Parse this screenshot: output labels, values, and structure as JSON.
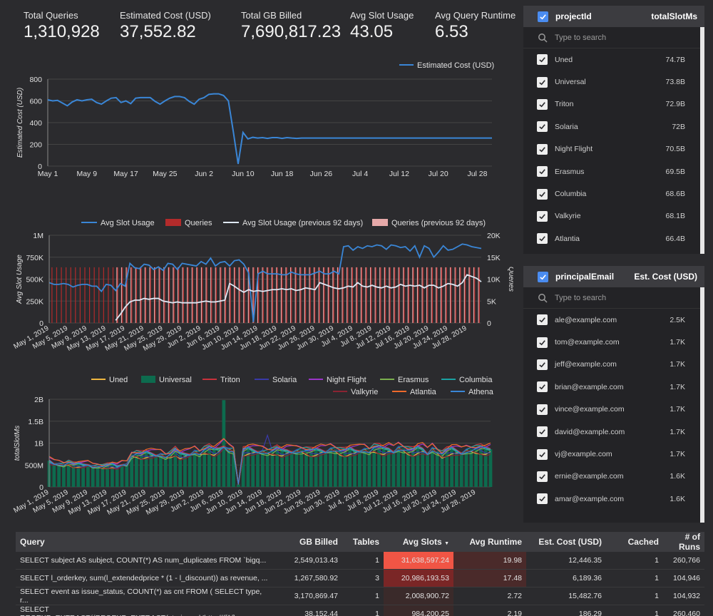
{
  "scorecards": [
    {
      "label": "Total Queries",
      "value": "1,310,928"
    },
    {
      "label": "Estimated Cost (USD)",
      "value": "37,552.82"
    },
    {
      "label": "Total GB Billed",
      "value": "7,690,817.23"
    },
    {
      "label": "Avg Slot Usage",
      "value": "43.05"
    },
    {
      "label": "Avg Query Runtime",
      "value": "6.53"
    }
  ],
  "colors": {
    "blue": "#3a86d6",
    "queries": "#b32b2b",
    "queries_prev": "#e6a9a9",
    "prev_line": "#dfe8f5",
    "highlight1": "#f05545",
    "highlight2": "#7a2626"
  },
  "chart_data": [
    {
      "type": "line",
      "title": "",
      "legend": [
        "Estimated Cost (USD)"
      ],
      "legend_position": "top-right",
      "ylabel": "Estimated Cost (USD)",
      "ylim": [
        0,
        800
      ],
      "yticks": [
        "0",
        "200",
        "400",
        "600",
        "800"
      ],
      "xticks": [
        "May 1",
        "May 9",
        "May 17",
        "May 25",
        "Jun 2",
        "Jun 10",
        "Jun 18",
        "Jun 26",
        "Jul 4",
        "Jul 12",
        "Jul 20",
        "Jul 28"
      ],
      "x_start": "2019-05-01",
      "x_end": "2019-07-31",
      "series": [
        {
          "name": "Estimated Cost (USD)",
          "color": "#3a86d6",
          "values": [
            610,
            600,
            605,
            580,
            555,
            590,
            610,
            600,
            610,
            615,
            585,
            570,
            600,
            625,
            630,
            585,
            600,
            575,
            625,
            630,
            630,
            630,
            595,
            570,
            600,
            625,
            640,
            640,
            630,
            595,
            570,
            615,
            630,
            660,
            665,
            665,
            650,
            600,
            320,
            20,
            310,
            250,
            265,
            258,
            262,
            255,
            262,
            262,
            255,
            262,
            258,
            255,
            258,
            258,
            258,
            258,
            258,
            258,
            258,
            258,
            258,
            258,
            258,
            258,
            258,
            258,
            258,
            258,
            258,
            258,
            258,
            258,
            258,
            258,
            258,
            258,
            258,
            258,
            258,
            258,
            258,
            258,
            258,
            258,
            258,
            258,
            258,
            258,
            258,
            258,
            258,
            258
          ]
        }
      ]
    },
    {
      "type": "bar",
      "title": "",
      "legend": [
        "Avg Slot Usage",
        "Queries",
        "Avg Slot Usage (previous 92 days)",
        "Queries (previous 92 days)"
      ],
      "legend_position": "top",
      "ylabel": "Avg Slot Usage",
      "y2label": "Queries",
      "ylim": [
        0,
        1000000
      ],
      "y2lim": [
        0,
        20000
      ],
      "yticks": [
        "0",
        "250K",
        "500K",
        "750K",
        "1M"
      ],
      "y2ticks": [
        "0",
        "5K",
        "10K",
        "15K",
        "20K"
      ],
      "xticks": [
        "May 1, 2019",
        "May 5, 2019",
        "May 9, 2019",
        "May 13, 2019",
        "May 17, 2019",
        "May 21, 2019",
        "May 25, 2019",
        "May 29, 2019",
        "Jun 2, 2019",
        "Jun 6, 2019",
        "Jun 10, 2019",
        "Jun 14, 2019",
        "Jun 18, 2019",
        "Jun 22, 2019",
        "Jun 26, 2019",
        "Jun 30, 2019",
        "Jul 4, 2019",
        "Jul 8, 2019",
        "Jul 12, 2019",
        "Jul 16, 2019",
        "Jul 20, 2019",
        "Jul 24, 2019",
        "Jul 28, 2019"
      ],
      "queries": 12700,
      "queries_prev": 12700,
      "series": [
        {
          "name": "Avg Slot Usage",
          "color": "#3a86d6",
          "values": [
            460000,
            440000,
            440000,
            450000,
            440000,
            410000,
            430000,
            440000,
            440000,
            420000,
            420000,
            360000,
            440000,
            430000,
            370000,
            450000,
            420000,
            680000,
            630000,
            620000,
            670000,
            660000,
            610000,
            640000,
            600000,
            680000,
            670000,
            610000,
            680000,
            670000,
            660000,
            650000,
            700000,
            670000,
            740000,
            650000,
            690000,
            700000,
            650000,
            710000,
            720000,
            670000,
            570000,
            10000,
            560000,
            590000,
            560000,
            560000,
            560000,
            550000,
            550000,
            580000,
            560000,
            550000,
            550000,
            550000,
            570000,
            590000,
            560000,
            560000,
            590000,
            560000,
            870000,
            880000,
            830000,
            870000,
            850000,
            880000,
            870000,
            890000,
            880000,
            840000,
            890000,
            880000,
            860000,
            870000,
            820000,
            880000,
            750000,
            880000,
            850000,
            750000,
            810000,
            880000,
            830000,
            840000,
            870000,
            900000,
            890000,
            870000,
            860000,
            850000
          ]
        },
        {
          "name": "Avg Slot Usage (previous 92 days)",
          "color": "#dfe8f5",
          "values": [
            null,
            null,
            null,
            null,
            null,
            null,
            null,
            null,
            null,
            null,
            null,
            null,
            null,
            null,
            30000,
            100000,
            180000,
            240000,
            260000,
            260000,
            280000,
            270000,
            280000,
            280000,
            250000,
            240000,
            230000,
            240000,
            230000,
            230000,
            230000,
            230000,
            240000,
            250000,
            240000,
            240000,
            250000,
            260000,
            450000,
            420000,
            380000,
            350000,
            380000,
            360000,
            370000,
            360000,
            370000,
            380000,
            380000,
            390000,
            380000,
            390000,
            370000,
            380000,
            400000,
            390000,
            380000,
            460000,
            440000,
            420000,
            400000,
            390000,
            400000,
            420000,
            410000,
            460000,
            420000,
            410000,
            430000,
            410000,
            400000,
            420000,
            400000,
            410000,
            440000,
            420000,
            430000,
            420000,
            430000,
            400000,
            430000,
            430000,
            400000,
            420000,
            450000,
            440000,
            420000,
            460000,
            550000,
            530000,
            510000,
            470000
          ]
        }
      ]
    },
    {
      "type": "area",
      "title": "",
      "legend": [
        "Uned",
        "Universal",
        "Triton",
        "Solaria",
        "Night Flight",
        "Erasmus",
        "Columbia",
        "Valkyrie",
        "Atlantia",
        "Athena"
      ],
      "legend_position": "top",
      "ylabel": "totalSlotMs",
      "ylim": [
        0,
        2000000000
      ],
      "yticks": [
        "0",
        "500M",
        "1B",
        "1.5B",
        "2B"
      ],
      "xticks": [
        "May 1, 2019",
        "May 5, 2019",
        "May 9, 2019",
        "May 13, 2019",
        "May 17, 2019",
        "May 21, 2019",
        "May 25, 2019",
        "May 29, 2019",
        "Jun 2, 2019",
        "Jun 6, 2019",
        "Jun 10, 2019",
        "Jun 14, 2019",
        "Jun 18, 2019",
        "Jun 22, 2019",
        "Jun 26, 2019",
        "Jun 30, 2019",
        "Jul 4, 2019",
        "Jul 8, 2019",
        "Jul 12, 2019",
        "Jul 16, 2019",
        "Jul 20, 2019",
        "Jul 24, 2019",
        "Jul 28, 2019"
      ],
      "series_colors": [
        "#f0b840",
        "#0d6b4e",
        "#c8323c",
        "#3a3aa8",
        "#9b35c8",
        "#7bb04e",
        "#1aa3a3",
        "#8a2332",
        "#ef6a2b",
        "#3a86d6"
      ],
      "universal_values": [
        600000000,
        540000000,
        540000000,
        520000000,
        560000000,
        510000000,
        520000000,
        510000000,
        520000000,
        480000000,
        490000000,
        470000000,
        490000000,
        510000000,
        470000000,
        520000000,
        530000000,
        740000000,
        760000000,
        740000000,
        770000000,
        760000000,
        740000000,
        760000000,
        710000000,
        750000000,
        830000000,
        740000000,
        750000000,
        760000000,
        830000000,
        780000000,
        850000000,
        880000000,
        830000000,
        870000000,
        1980000000,
        880000000,
        850000000,
        60000000,
        820000000,
        860000000,
        840000000,
        820000000,
        830000000,
        810000000,
        820000000,
        860000000,
        810000000,
        830000000,
        820000000,
        840000000,
        850000000,
        830000000,
        810000000,
        830000000,
        840000000,
        820000000,
        880000000,
        860000000,
        820000000,
        810000000,
        850000000,
        830000000,
        840000000,
        870000000,
        830000000,
        900000000,
        890000000,
        850000000,
        870000000,
        820000000,
        910000000,
        880000000,
        840000000,
        820000000,
        880000000,
        870000000,
        780000000,
        890000000,
        820000000,
        750000000,
        820000000,
        860000000,
        830000000,
        790000000,
        850000000,
        860000000,
        870000000,
        880000000,
        850000000,
        860000000
      ]
    }
  ],
  "panel1": {
    "header_left": "projectId",
    "header_right": "totalSlotMs",
    "search_placeholder": "Type to search",
    "rows": [
      {
        "label": "Uned",
        "value": "74.7B"
      },
      {
        "label": "Universal",
        "value": "73.8B"
      },
      {
        "label": "Triton",
        "value": "72.9B"
      },
      {
        "label": "Solaria",
        "value": "72B"
      },
      {
        "label": "Night Flight",
        "value": "70.5B"
      },
      {
        "label": "Erasmus",
        "value": "69.5B"
      },
      {
        "label": "Columbia",
        "value": "68.6B"
      },
      {
        "label": "Valkyrie",
        "value": "68.1B"
      },
      {
        "label": "Atlantia",
        "value": "66.4B"
      }
    ]
  },
  "panel2": {
    "header_left": "principalEmail",
    "header_right": "Est. Cost (USD)",
    "search_placeholder": "Type to search",
    "rows": [
      {
        "label": "ale@example.com",
        "value": "2.5K"
      },
      {
        "label": "tom@example.com",
        "value": "1.7K"
      },
      {
        "label": "jeff@example.com",
        "value": "1.7K"
      },
      {
        "label": "brian@example.com",
        "value": "1.7K"
      },
      {
        "label": "vince@example.com",
        "value": "1.7K"
      },
      {
        "label": "david@example.com",
        "value": "1.7K"
      },
      {
        "label": "vj@example.com",
        "value": "1.7K"
      },
      {
        "label": "ernie@example.com",
        "value": "1.6K"
      },
      {
        "label": "amar@example.com",
        "value": "1.6K"
      }
    ]
  },
  "table": {
    "headers": [
      "Query",
      "GB Billed",
      "Tables",
      "Avg Slots",
      "Avg Runtime",
      "Est. Cost (USD)",
      "Cached",
      "# of Runs"
    ],
    "rows": [
      [
        "SELECT subject AS subject, COUNT(*) AS num_duplicates FROM `bigq...",
        "2,549,013.43",
        "1",
        "31,638,597.24",
        "19.98",
        "12,446.35",
        "1",
        "260,766"
      ],
      [
        "SELECT l_orderkey, sum(l_extendedprice * (1 - l_discount)) as revenue, ...",
        "1,267,580.92",
        "3",
        "20,986,193.53",
        "17.48",
        "6,189.36",
        "1",
        "104,946"
      ],
      [
        "SELECT event as issue_status, COUNT(*) as cnt FROM ( SELECT type, r...",
        "3,170,869.47",
        "1",
        "2,008,900.72",
        "2.72",
        "15,482.76",
        "1",
        "104,932"
      ],
      [
        "SELECT REGEXP_EXTRACT((REGEXP_EXTRACT(stories.url,'http://([^/]+...",
        "38,152.44",
        "1",
        "984,200.25",
        "2.19",
        "186.29",
        "1",
        "260,460"
      ]
    ]
  }
}
